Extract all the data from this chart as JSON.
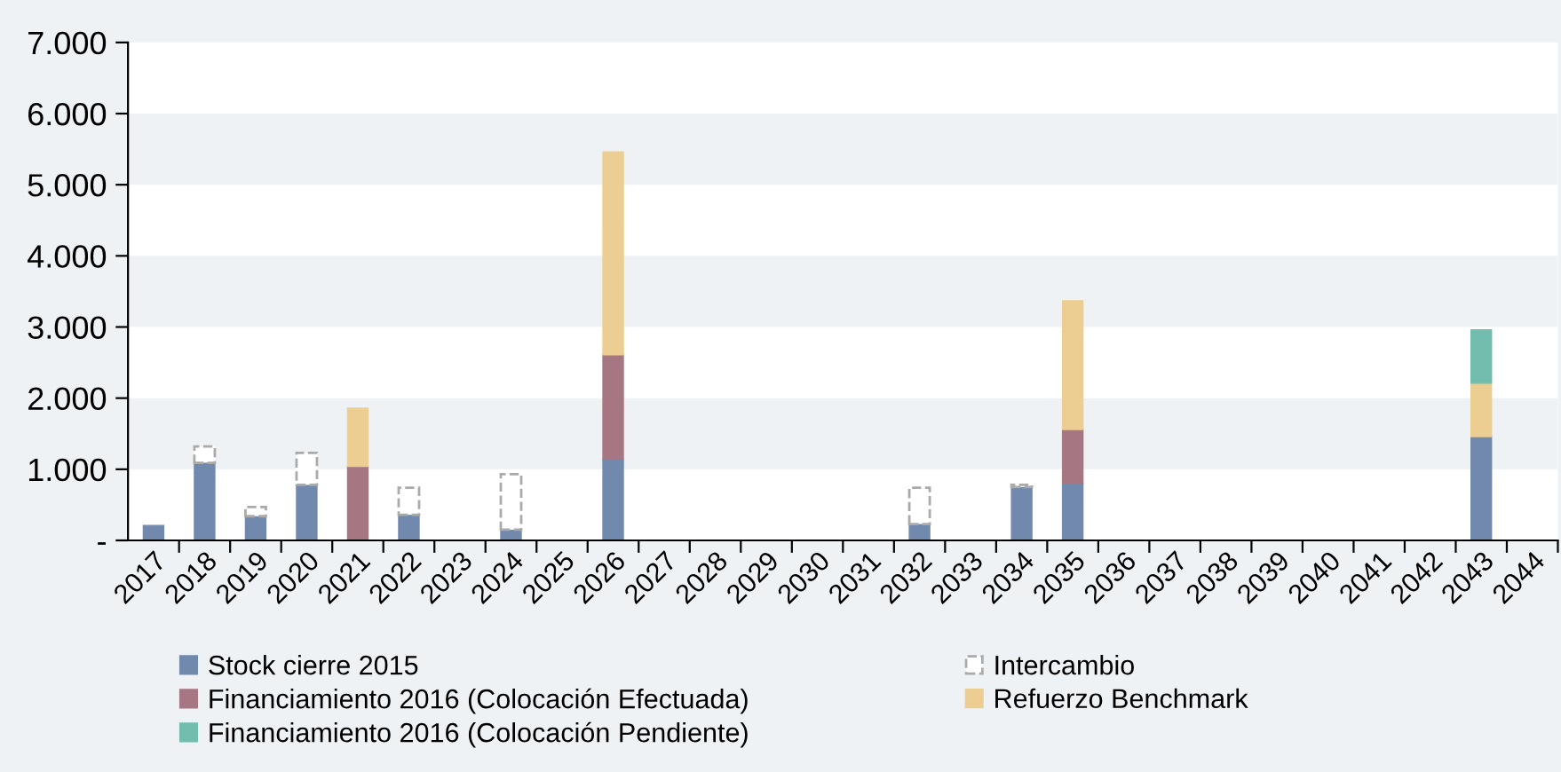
{
  "chart_data": {
    "type": "bar",
    "stacked": true,
    "categories": [
      "2017",
      "2018",
      "2019",
      "2020",
      "2021",
      "2022",
      "2023",
      "2024",
      "2025",
      "2026",
      "2027",
      "2028",
      "2029",
      "2030",
      "2031",
      "2032",
      "2033",
      "2034",
      "2035",
      "2036",
      "2037",
      "2038",
      "2039",
      "2040",
      "2041",
      "2042",
      "2043",
      "2044"
    ],
    "series": [
      {
        "name": "Stock cierre 2015",
        "color": "#7289ae",
        "values": [
          210,
          1090,
          340,
          780,
          null,
          360,
          null,
          150,
          null,
          1140,
          null,
          null,
          null,
          null,
          null,
          230,
          null,
          750,
          800,
          null,
          null,
          null,
          null,
          null,
          null,
          null,
          1460,
          null
        ]
      },
      {
        "name": "Intercambio",
        "color": "#ffffff",
        "line_style": "dashed",
        "values": [
          null,
          230,
          130,
          450,
          null,
          380,
          null,
          780,
          null,
          null,
          null,
          null,
          null,
          null,
          null,
          510,
          null,
          30,
          null,
          null,
          null,
          null,
          null,
          null,
          null,
          null,
          null,
          null
        ]
      },
      {
        "name": "Financiamiento 2016 (Colocación Efectuada)",
        "color": "#a67783",
        "values": [
          null,
          null,
          null,
          null,
          1040,
          null,
          null,
          null,
          null,
          1470,
          null,
          null,
          null,
          null,
          null,
          null,
          null,
          null,
          760,
          null,
          null,
          null,
          null,
          null,
          null,
          null,
          null,
          null
        ]
      },
      {
        "name": "Refuerzo Benchmark",
        "color": "#eccd92",
        "values": [
          null,
          null,
          null,
          null,
          820,
          null,
          null,
          null,
          null,
          2850,
          null,
          null,
          null,
          null,
          null,
          null,
          null,
          null,
          1810,
          null,
          null,
          null,
          null,
          null,
          null,
          null,
          750,
          null
        ]
      },
      {
        "name": "Financiamiento 2016 (Colocación Pendiente)",
        "color": "#72bdae",
        "values": [
          null,
          null,
          null,
          null,
          null,
          null,
          null,
          null,
          null,
          null,
          null,
          null,
          null,
          null,
          null,
          null,
          null,
          null,
          null,
          null,
          null,
          null,
          null,
          null,
          null,
          null,
          750,
          null
        ]
      }
    ],
    "ylim": [
      0,
      7000
    ],
    "yticks": [
      {
        "value": 0,
        "label": "-"
      },
      {
        "value": 1000,
        "label": "1.000"
      },
      {
        "value": 2000,
        "label": "2.000"
      },
      {
        "value": 3000,
        "label": "3.000"
      },
      {
        "value": 4000,
        "label": "4.000"
      },
      {
        "value": 5000,
        "label": "5.000"
      },
      {
        "value": 6000,
        "label": "6.000"
      },
      {
        "value": 7000,
        "label": "7.000"
      }
    ],
    "bands": [
      {
        "axis": "y",
        "from": 1000,
        "to": 2000,
        "color": "#eef2f5"
      },
      {
        "axis": "y",
        "from": 3000,
        "to": 4000,
        "color": "#eef2f5"
      },
      {
        "axis": "y",
        "from": 5000,
        "to": 6000,
        "color": "#eef2f5"
      }
    ],
    "legend": "bottom"
  }
}
